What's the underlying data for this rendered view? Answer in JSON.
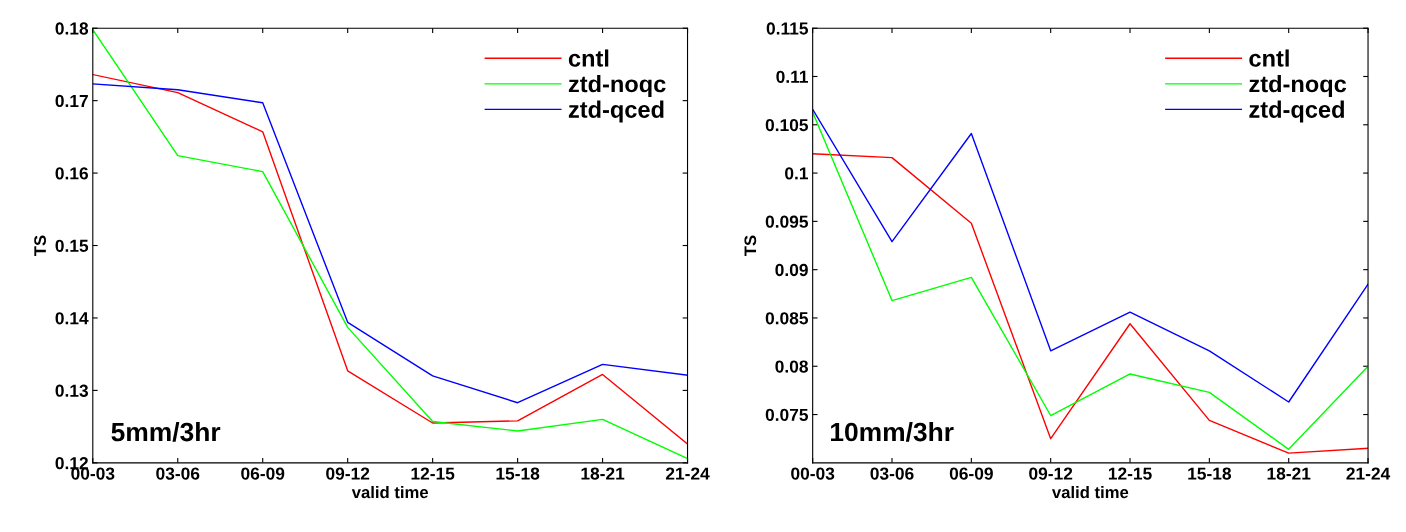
{
  "chart_data": [
    {
      "type": "line",
      "ylabel": "TS",
      "xlabel": "valid time",
      "categories": [
        "00-03",
        "03-06",
        "06-09",
        "09-12",
        "12-15",
        "15-18",
        "18-21",
        "21-24"
      ],
      "ylim": [
        0.12,
        0.18
      ],
      "yticks": [
        0.12,
        0.13,
        0.14,
        0.15,
        0.16,
        0.17,
        0.18
      ],
      "legend": "top right",
      "grid": false,
      "annotations": [
        "5mm/3hr"
      ],
      "series": [
        {
          "name": "cntl",
          "color": "#ff0000",
          "values": [
            0.1736,
            0.1711,
            0.1657,
            0.1327,
            0.1255,
            0.1258,
            0.1322,
            0.1226
          ]
        },
        {
          "name": "ztd-noqc",
          "color": "#00ff00",
          "values": [
            0.1798,
            0.1624,
            0.1602,
            0.1387,
            0.1257,
            0.1244,
            0.126,
            0.1206
          ]
        },
        {
          "name": "ztd-qced",
          "color": "#0000ff",
          "values": [
            0.1723,
            0.1715,
            0.1697,
            0.1394,
            0.132,
            0.1283,
            0.1336,
            0.1321
          ]
        }
      ]
    },
    {
      "type": "line",
      "ylabel": "TS",
      "xlabel": "valid time",
      "categories": [
        "00-03",
        "03-06",
        "06-09",
        "09-12",
        "12-15",
        "15-18",
        "18-21",
        "21-24"
      ],
      "ylim": [
        0.07,
        0.115
      ],
      "yticks": [
        0.075,
        0.08,
        0.085,
        0.09,
        0.095,
        0.1,
        0.105,
        0.11,
        0.115
      ],
      "legend": "top right",
      "grid": false,
      "annotations": [
        "10mm/3hr"
      ],
      "series": [
        {
          "name": "cntl",
          "color": "#ff0000",
          "values": [
            0.102,
            0.1016,
            0.0948,
            0.0725,
            0.0844,
            0.0744,
            0.071,
            0.0715
          ]
        },
        {
          "name": "ztd-noqc",
          "color": "#00ff00",
          "values": [
            0.1063,
            0.0868,
            0.0892,
            0.0749,
            0.0792,
            0.0773,
            0.0714,
            0.08
          ]
        },
        {
          "name": "ztd-qced",
          "color": "#0000ff",
          "values": [
            0.1066,
            0.0929,
            0.1041,
            0.0816,
            0.0856,
            0.0816,
            0.0763,
            0.0885
          ]
        }
      ]
    }
  ]
}
